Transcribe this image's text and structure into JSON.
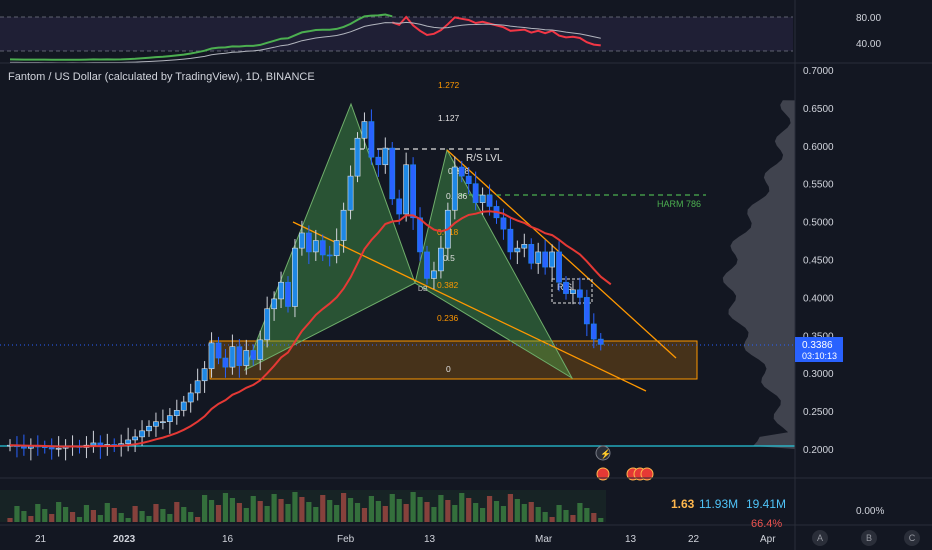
{
  "chart_title": "Fantom / US Dollar (calculated by TradingView), 1D, BINANCE",
  "price_axis": {
    "ticks": [
      "0.7000",
      "0.6500",
      "0.6000",
      "0.5500",
      "0.5000",
      "0.4500",
      "0.4000",
      "0.3500",
      "0.3000",
      "0.2500",
      "0.2000"
    ],
    "current_price": "0.3386",
    "countdown": "03:10:13"
  },
  "rsi_axis": {
    "ticks": [
      "80.00",
      "40.00"
    ]
  },
  "volume_axis": {
    "ticks": [
      "0.00%"
    ]
  },
  "time_axis": {
    "ticks": [
      "21",
      "2023",
      "16",
      "Feb",
      "13",
      "Mar",
      "13",
      "22",
      "Apr"
    ]
  },
  "fib_labels": [
    "1.272",
    "1.127",
    "0.888",
    "0.786",
    "0.618",
    "0.5",
    "0.382",
    "0.236",
    "0"
  ],
  "annotations": {
    "rs_lvl": "R/S LVL",
    "harm": "HARM 786",
    "rs_box": "R/S",
    "db": "DB"
  },
  "indicator_values": {
    "v1": "1.63",
    "v2": "11.93M",
    "v3": "19.41M",
    "v4": "66.4%"
  },
  "bottom_buttons": [
    "A",
    "B",
    "C"
  ],
  "colors": {
    "background": "#131722",
    "candle_up": "#26a69a",
    "candle_blue": "#2962ff",
    "pattern_fill": "#4caf50",
    "zone_fill": "#ff9800",
    "ma_line": "#e53935",
    "trendline": "#ff9800",
    "support_line": "#26c6da"
  },
  "chart_data": {
    "type": "candlestick",
    "symbol": "Fantom / US Dollar",
    "timeframe": "1D",
    "exchange": "BINANCE",
    "last_price": 0.3386,
    "ylim": [
      0.18,
      0.71
    ],
    "closes": [
      0.205,
      0.203,
      0.201,
      0.204,
      0.203,
      0.202,
      0.2,
      0.201,
      0.203,
      0.204,
      0.202,
      0.205,
      0.208,
      0.203,
      0.206,
      0.204,
      0.207,
      0.212,
      0.216,
      0.224,
      0.23,
      0.236,
      0.236,
      0.244,
      0.251,
      0.262,
      0.274,
      0.29,
      0.306,
      0.34,
      0.32,
      0.308,
      0.335,
      0.31,
      0.33,
      0.318,
      0.344,
      0.385,
      0.398,
      0.42,
      0.388,
      0.465,
      0.485,
      0.46,
      0.475,
      0.456,
      0.455,
      0.475,
      0.515,
      0.56,
      0.61,
      0.632,
      0.585,
      0.575,
      0.597,
      0.53,
      0.51,
      0.575,
      0.505,
      0.46,
      0.425,
      0.435,
      0.465,
      0.515,
      0.572,
      0.56,
      0.55,
      0.525,
      0.535,
      0.52,
      0.505,
      0.49,
      0.46,
      0.465,
      0.47,
      0.445,
      0.46,
      0.44,
      0.46,
      0.42,
      0.405,
      0.41,
      0.4,
      0.365,
      0.345,
      0.338
    ]
  }
}
